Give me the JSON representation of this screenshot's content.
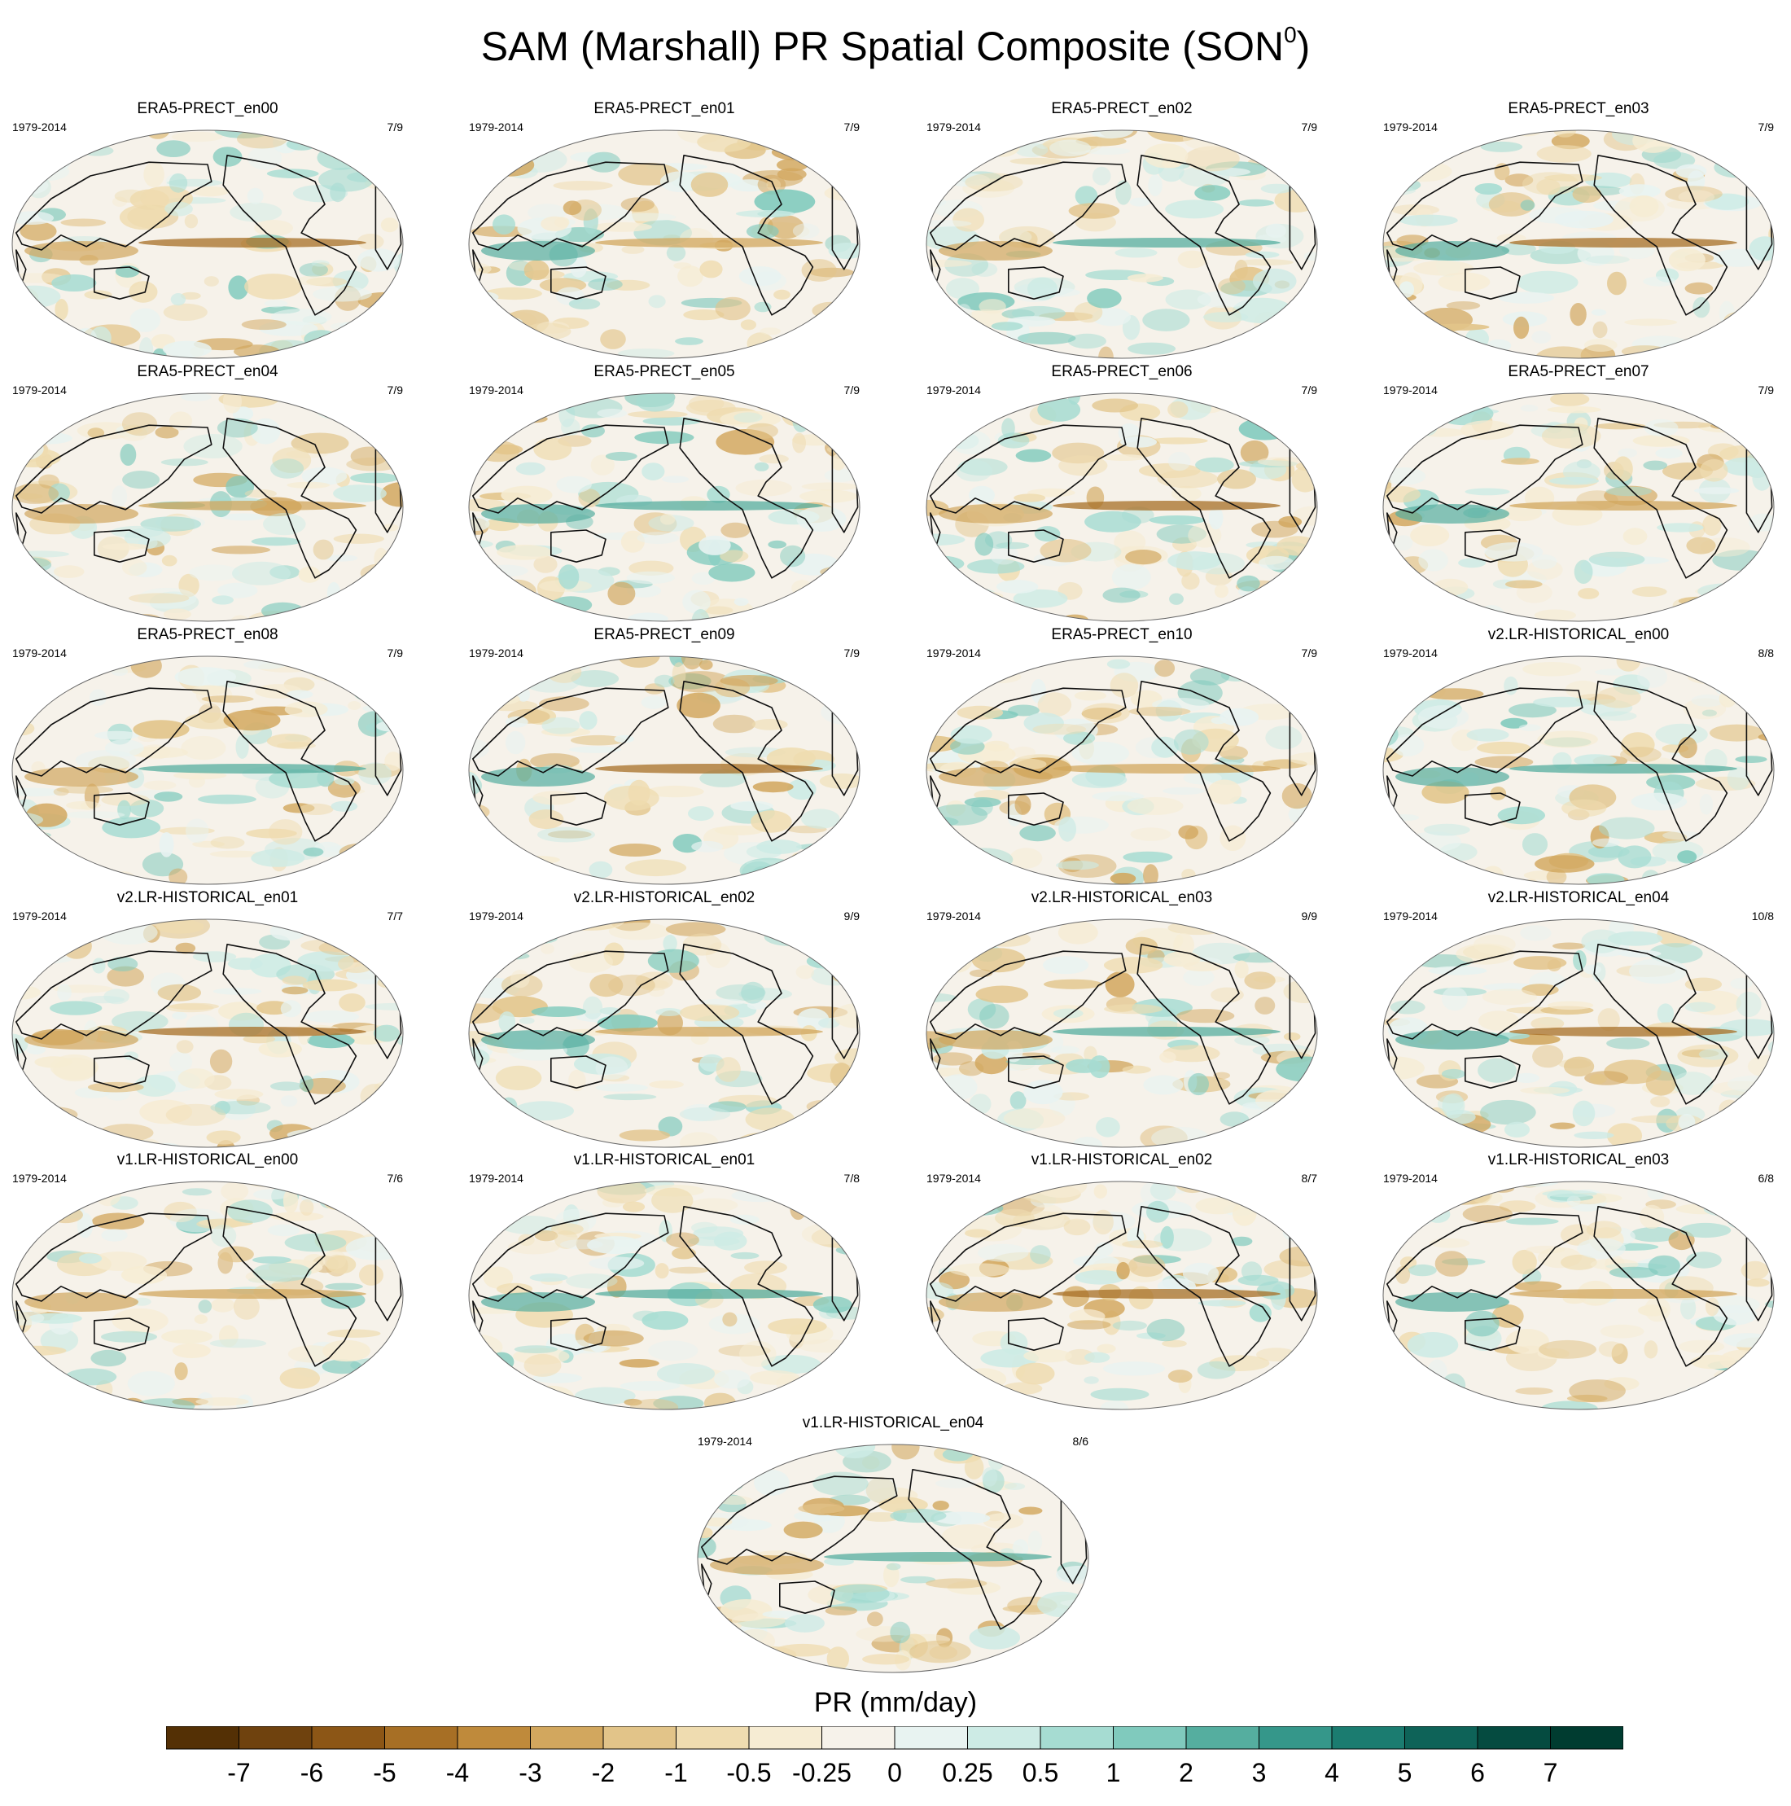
{
  "title": "SAM (Marshall) PR Spatial Composite (SON",
  "title_sup": "0",
  "title_close": ")",
  "chart_data": {
    "type": "heatmap",
    "title": "SAM (Marshall) PR Spatial Composite (SON0)",
    "variable": "PR (mm/day)",
    "panels": [
      {
        "name": "ERA5-PRECT_en00",
        "period": "1979-2014",
        "count": "7/9"
      },
      {
        "name": "ERA5-PRECT_en01",
        "period": "1979-2014",
        "count": "7/9"
      },
      {
        "name": "ERA5-PRECT_en02",
        "period": "1979-2014",
        "count": "7/9"
      },
      {
        "name": "ERA5-PRECT_en03",
        "period": "1979-2014",
        "count": "7/9"
      },
      {
        "name": "ERA5-PRECT_en04",
        "period": "1979-2014",
        "count": "7/9"
      },
      {
        "name": "ERA5-PRECT_en05",
        "period": "1979-2014",
        "count": "7/9"
      },
      {
        "name": "ERA5-PRECT_en06",
        "period": "1979-2014",
        "count": "7/9"
      },
      {
        "name": "ERA5-PRECT_en07",
        "period": "1979-2014",
        "count": "7/9"
      },
      {
        "name": "ERA5-PRECT_en08",
        "period": "1979-2014",
        "count": "7/9"
      },
      {
        "name": "ERA5-PRECT_en09",
        "period": "1979-2014",
        "count": "7/9"
      },
      {
        "name": "ERA5-PRECT_en10",
        "period": "1979-2014",
        "count": "7/9"
      },
      {
        "name": "v2.LR-HISTORICAL_en00",
        "period": "1979-2014",
        "count": "8/8"
      },
      {
        "name": "v2.LR-HISTORICAL_en01",
        "period": "1979-2014",
        "count": "7/7"
      },
      {
        "name": "v2.LR-HISTORICAL_en02",
        "period": "1979-2014",
        "count": "9/9"
      },
      {
        "name": "v2.LR-HISTORICAL_en03",
        "period": "1979-2014",
        "count": "9/9"
      },
      {
        "name": "v2.LR-HISTORICAL_en04",
        "period": "1979-2014",
        "count": "10/8"
      },
      {
        "name": "v1.LR-HISTORICAL_en00",
        "period": "1979-2014",
        "count": "7/6"
      },
      {
        "name": "v1.LR-HISTORICAL_en01",
        "period": "1979-2014",
        "count": "7/8"
      },
      {
        "name": "v1.LR-HISTORICAL_en02",
        "period": "1979-2014",
        "count": "8/7"
      },
      {
        "name": "v1.LR-HISTORICAL_en03",
        "period": "1979-2014",
        "count": "6/8"
      },
      {
        "name": "v1.LR-HISTORICAL_en04",
        "period": "1979-2014",
        "count": "8/6"
      }
    ],
    "colorbar": {
      "label": "PR (mm/day)",
      "ticks": [
        "-7",
        "-6",
        "-5",
        "-4",
        "-3",
        "-2",
        "-1",
        "-0.5",
        "-0.25",
        "0",
        "0.25",
        "0.5",
        "1",
        "2",
        "3",
        "4",
        "5",
        "6",
        "7"
      ],
      "colors": [
        "#543005",
        "#6f420e",
        "#8c5616",
        "#a76f25",
        "#bf8a3b",
        "#d2a75e",
        "#e2c489",
        "#efdcb0",
        "#f6ecd3",
        "#f6f2ea",
        "#e8f3f1",
        "#cdebe5",
        "#a6dcd2",
        "#80cabd",
        "#55ae9f",
        "#35978a",
        "#1b7c70",
        "#0e6358",
        "#054b40",
        "#003c30"
      ]
    }
  }
}
